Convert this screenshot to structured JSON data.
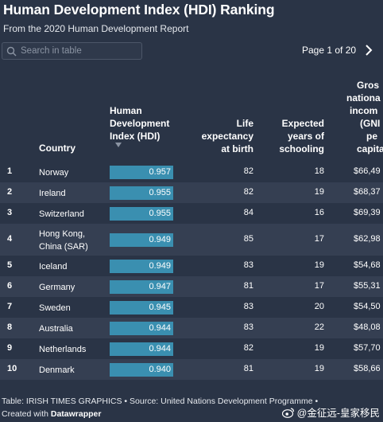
{
  "header": {
    "title": "Human Development Index (HDI) Ranking",
    "subtitle": "From the 2020 Human Development Report"
  },
  "search": {
    "placeholder": "Search in table"
  },
  "pagination": {
    "label": "Page 1 of 20"
  },
  "columns": {
    "country": "Country",
    "hdi": [
      "Human",
      "Development",
      "Index (HDI)"
    ],
    "life": [
      "Life",
      "expectancy",
      "at birth"
    ],
    "school": [
      "Expected",
      "years of",
      "schooling"
    ],
    "gni": [
      "Gros",
      "nationa",
      "incom",
      "(GNI",
      "pe",
      "capita"
    ]
  },
  "rows": [
    {
      "rank": "1",
      "country": [
        "Norway"
      ],
      "hdi": 0.957,
      "hdi_label": "0.957",
      "life": "82",
      "school": "18",
      "gni": "$66,49"
    },
    {
      "rank": "2",
      "country": [
        "Ireland"
      ],
      "hdi": 0.955,
      "hdi_label": "0.955",
      "life": "82",
      "school": "19",
      "gni": "$68,37"
    },
    {
      "rank": "3",
      "country": [
        "Switzerland"
      ],
      "hdi": 0.955,
      "hdi_label": "0.955",
      "life": "84",
      "school": "16",
      "gni": "$69,39"
    },
    {
      "rank": "4",
      "country": [
        "Hong Kong,",
        "China (SAR)"
      ],
      "hdi": 0.949,
      "hdi_label": "0.949",
      "life": "85",
      "school": "17",
      "gni": "$62,98"
    },
    {
      "rank": "5",
      "country": [
        "Iceland"
      ],
      "hdi": 0.949,
      "hdi_label": "0.949",
      "life": "83",
      "school": "19",
      "gni": "$54,68"
    },
    {
      "rank": "6",
      "country": [
        "Germany"
      ],
      "hdi": 0.947,
      "hdi_label": "0.947",
      "life": "81",
      "school": "17",
      "gni": "$55,31"
    },
    {
      "rank": "7",
      "country": [
        "Sweden"
      ],
      "hdi": 0.945,
      "hdi_label": "0.945",
      "life": "83",
      "school": "20",
      "gni": "$54,50"
    },
    {
      "rank": "8",
      "country": [
        "Australia"
      ],
      "hdi": 0.944,
      "hdi_label": "0.944",
      "life": "83",
      "school": "22",
      "gni": "$48,08"
    },
    {
      "rank": "9",
      "country": [
        "Netherlands"
      ],
      "hdi": 0.944,
      "hdi_label": "0.944",
      "life": "82",
      "school": "19",
      "gni": "$57,70"
    },
    {
      "rank": "10",
      "country": [
        "Denmark"
      ],
      "hdi": 0.94,
      "hdi_label": "0.940",
      "life": "81",
      "school": "19",
      "gni": "$58,66"
    }
  ],
  "footer": {
    "line1": "Table: IRISH TIMES GRAPHICS • Source: United Nations Development Programme •",
    "created_prefix": "Created with ",
    "created_tool": "Datawrapper"
  },
  "watermark": "@金征远-皇家移民",
  "colors": {
    "background": "#2a3446",
    "row_alt": "#353f52",
    "bar": "#3a8fb0"
  }
}
